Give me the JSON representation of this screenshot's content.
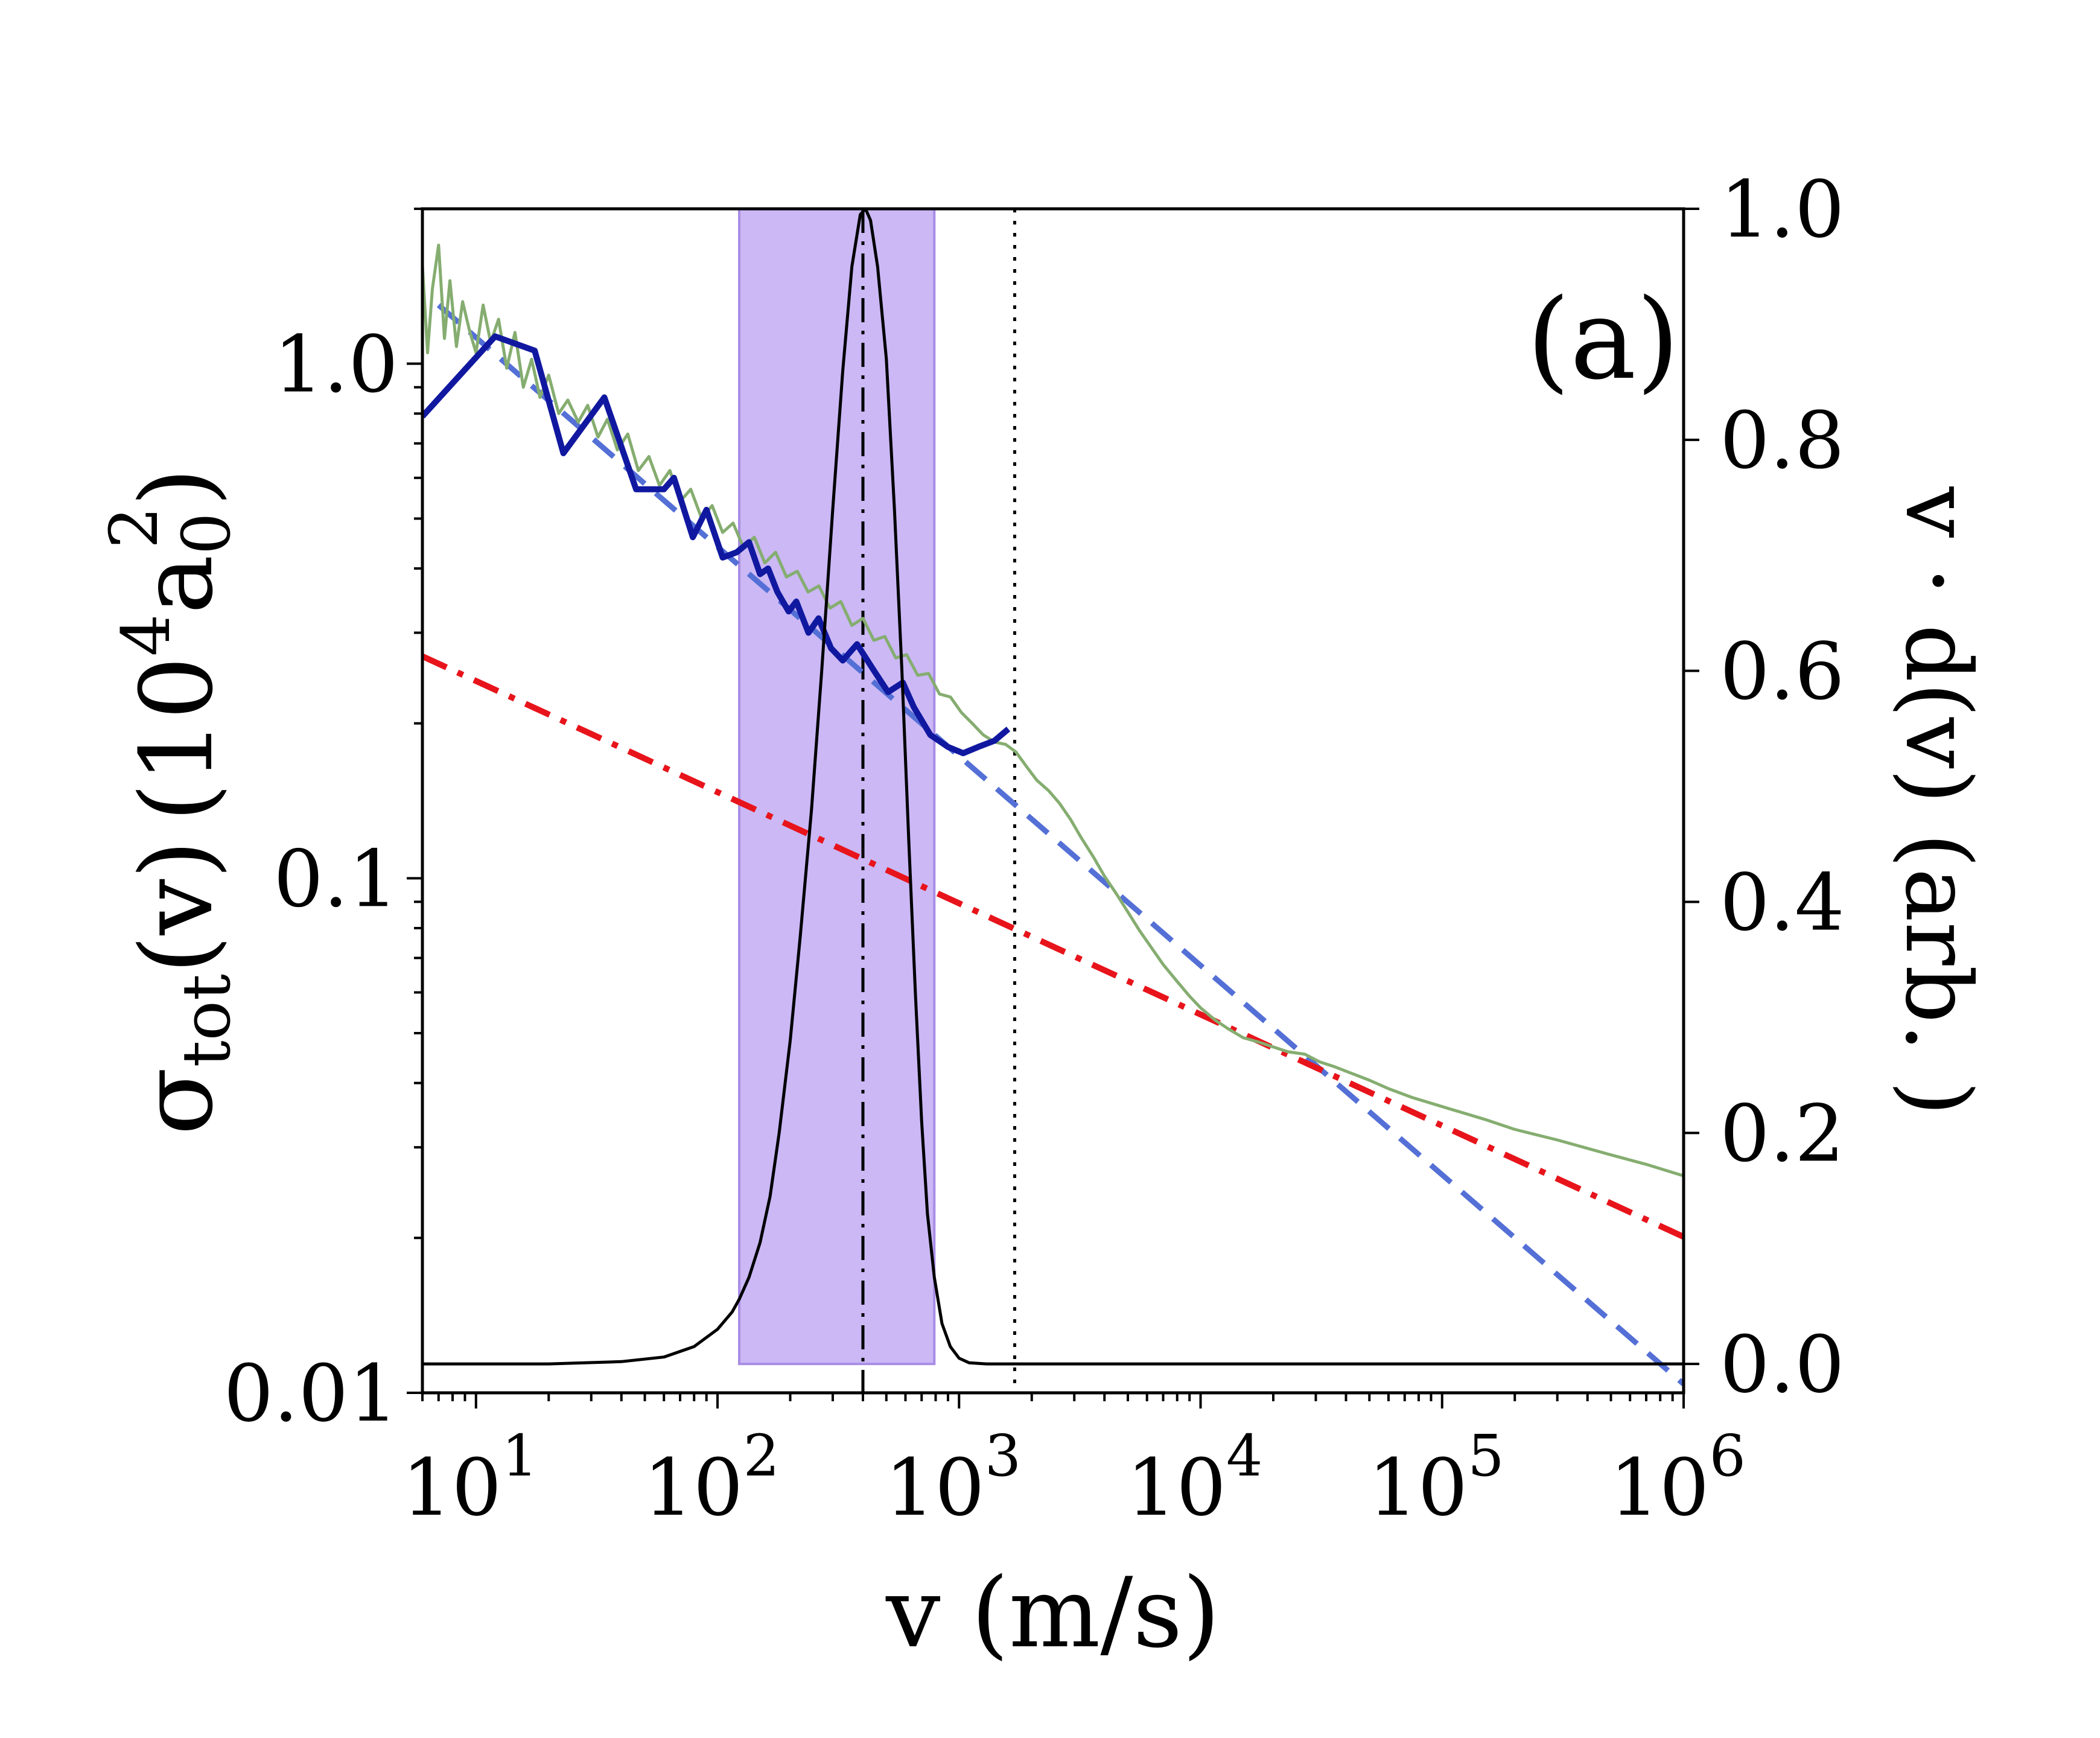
{
  "chart_data": {
    "type": "line",
    "panel_label": "(a)",
    "xlabel": "v (m/s)",
    "ylabel_left": {
      "main": "σ",
      "sub": "tot",
      "rest": "(v)",
      "unit_prefix": "(10",
      "unit_exp": "4",
      "unit_a": "a",
      "unit_sub": "0",
      "unit_sup": "2",
      "unit_close": ")"
    },
    "ylabel_right": "v · d(v) (arb. )",
    "x_scale": "log",
    "xlim": [
      6,
      1000000
    ],
    "y_left_scale": "log",
    "y_left_lim": [
      0.01,
      2.0
    ],
    "y_right_lim": [
      -0.025,
      1.0
    ],
    "x_ticks": [
      {
        "v": 10,
        "base": "10",
        "exp": "1"
      },
      {
        "v": 100,
        "base": "10",
        "exp": "2"
      },
      {
        "v": 1000,
        "base": "10",
        "exp": "3"
      },
      {
        "v": 10000,
        "base": "10",
        "exp": "4"
      },
      {
        "v": 100000,
        "base": "10",
        "exp": "5"
      },
      {
        "v": 1000000,
        "base": "10",
        "exp": "6"
      }
    ],
    "y_left_ticks": [
      {
        "v": 0.01,
        "label": "0.01"
      },
      {
        "v": 0.1,
        "label": "0.1"
      },
      {
        "v": 1.0,
        "label": "1.0"
      }
    ],
    "y_right_ticks": [
      {
        "v": 0.0,
        "label": "0.0"
      },
      {
        "v": 0.2,
        "label": "0.2"
      },
      {
        "v": 0.4,
        "label": "0.4"
      },
      {
        "v": 0.6,
        "label": "0.6"
      },
      {
        "v": 0.8,
        "label": "0.8"
      },
      {
        "v": 1.0,
        "label": "1.0"
      }
    ],
    "shaded_band": {
      "x_range": [
        123,
        790
      ],
      "y_right_range": [
        0.0,
        1.0
      ],
      "color": "#cbb8f5",
      "edge_color": "#a98de6"
    },
    "vlines": [
      {
        "x": 400,
        "style": "dashdot",
        "color": "#000000"
      },
      {
        "x": 1700,
        "style": "dotted",
        "color": "#000000"
      }
    ],
    "series": [
      {
        "axis": "left",
        "style": "dashed",
        "color": "#5470d6",
        "x": [
          7,
          1000000
        ],
        "y": [
          1.3,
          0.0104
        ]
      },
      {
        "axis": "left",
        "style": "dashdot",
        "color": "#e8141b",
        "x": [
          6,
          1000000
        ],
        "y": [
          0.27,
          0.0201
        ]
      },
      {
        "axis": "left",
        "style": "solid",
        "color": "#85ad70",
        "x": [
          6,
          6.3,
          6.6,
          7,
          7.4,
          7.8,
          8.3,
          8.8,
          9.4,
          10,
          10.7,
          11.5,
          12.4,
          13.4,
          14.5,
          15.7,
          17,
          18.4,
          20,
          22,
          24,
          26.5,
          29,
          32,
          35,
          38.5,
          42.5,
          47,
          52,
          57.5,
          63.5,
          70,
          77.5,
          86,
          95,
          105,
          116,
          128,
          142,
          157,
          174,
          193,
          214,
          237,
          263,
          292,
          324,
          360,
          400,
          444,
          493,
          547,
          607,
          674,
          748,
          830,
          921,
          1022,
          1134,
          1259,
          1400,
          1560,
          1720,
          1900,
          2100,
          2350,
          2600,
          2900,
          3200,
          3600,
          4000,
          4500,
          5000,
          5600,
          6300,
          7000,
          8000,
          9000,
          10000,
          11500,
          13000,
          15000,
          17500,
          20000,
          23000,
          27000,
          31000,
          36000,
          42000,
          50000,
          60000,
          75000,
          100000,
          150000,
          200000,
          300000,
          500000,
          700000,
          1000000
        ],
        "y": [
          1.55,
          1.05,
          1.4,
          1.7,
          1.12,
          1.45,
          1.08,
          1.32,
          1.16,
          1.05,
          1.3,
          1.1,
          1.22,
          0.98,
          1.15,
          0.9,
          1.02,
          0.86,
          0.95,
          0.8,
          0.85,
          0.77,
          0.83,
          0.72,
          0.78,
          0.68,
          0.73,
          0.62,
          0.66,
          0.58,
          0.62,
          0.54,
          0.57,
          0.5,
          0.53,
          0.47,
          0.49,
          0.44,
          0.46,
          0.41,
          0.43,
          0.385,
          0.395,
          0.36,
          0.37,
          0.335,
          0.345,
          0.31,
          0.32,
          0.29,
          0.295,
          0.268,
          0.272,
          0.248,
          0.25,
          0.228,
          0.225,
          0.21,
          0.2,
          0.19,
          0.184,
          0.182,
          0.176,
          0.165,
          0.155,
          0.148,
          0.14,
          0.13,
          0.12,
          0.11,
          0.101,
          0.093,
          0.086,
          0.079,
          0.073,
          0.068,
          0.063,
          0.059,
          0.056,
          0.053,
          0.051,
          0.049,
          0.048,
          0.047,
          0.046,
          0.0455,
          0.044,
          0.043,
          0.0418,
          0.0405,
          0.039,
          0.0375,
          0.036,
          0.034,
          0.0325,
          0.031,
          0.029,
          0.0278,
          0.0264
        ]
      },
      {
        "axis": "left",
        "style": "solid",
        "color": "#1118a0",
        "x": [
          6,
          12,
          17.5,
          23,
          34,
          46,
          60,
          66,
          79,
          90,
          105,
          120,
          135,
          150,
          162,
          177,
          197,
          212,
          238,
          262,
          295,
          330,
          378,
          440,
          508,
          585,
          650,
          760,
          900,
          1040,
          1200,
          1400,
          1600
        ],
        "y": [
          0.79,
          1.13,
          1.06,
          0.67,
          0.86,
          0.57,
          0.57,
          0.6,
          0.46,
          0.52,
          0.42,
          0.43,
          0.45,
          0.39,
          0.4,
          0.36,
          0.33,
          0.345,
          0.3,
          0.32,
          0.28,
          0.265,
          0.285,
          0.255,
          0.23,
          0.24,
          0.215,
          0.19,
          0.18,
          0.175,
          0.18,
          0.185,
          0.195
        ]
      },
      {
        "axis": "right",
        "style": "solid",
        "color": "#000000",
        "x": [
          6,
          20,
          40,
          60,
          80,
          100,
          115,
          123,
          135,
          150,
          165,
          180,
          200,
          220,
          245,
          270,
          300,
          330,
          360,
          390,
          410,
          430,
          460,
          500,
          540,
          580,
          620,
          660,
          700,
          740,
          790,
          850,
          920,
          1000,
          1100,
          1300,
          2000,
          10000,
          100000,
          1000000
        ],
        "y": [
          0.0,
          0.0,
          0.002,
          0.006,
          0.015,
          0.03,
          0.045,
          0.056,
          0.075,
          0.105,
          0.145,
          0.2,
          0.28,
          0.37,
          0.48,
          0.6,
          0.74,
          0.86,
          0.95,
          0.995,
          1.0,
          0.99,
          0.95,
          0.87,
          0.74,
          0.6,
          0.45,
          0.32,
          0.21,
          0.13,
          0.075,
          0.035,
          0.015,
          0.005,
          0.001,
          0.0,
          0.0,
          0.0,
          0.0,
          0.0
        ]
      }
    ]
  }
}
